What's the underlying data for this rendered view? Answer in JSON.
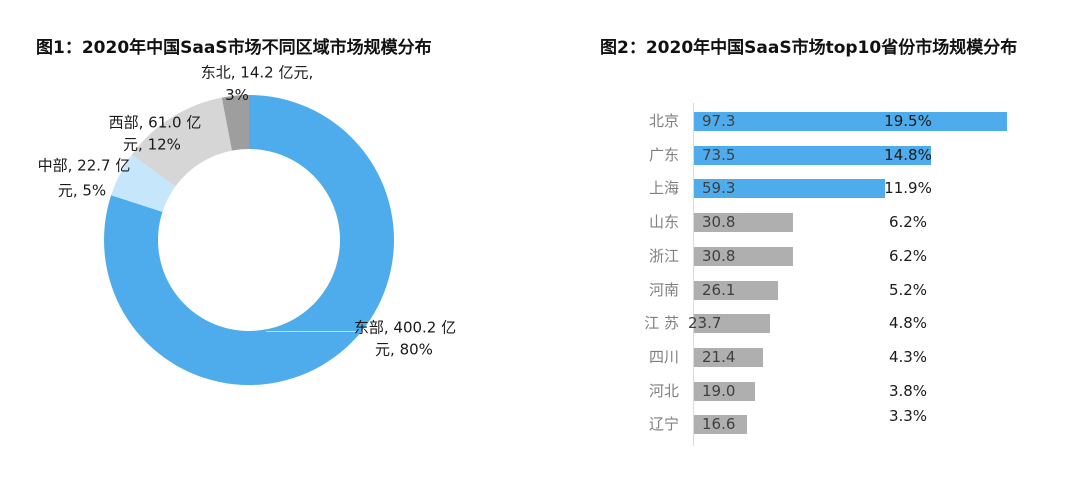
{
  "colors": {
    "background": "#FFFFFF",
    "pie_blue": "#4FACEC",
    "pie_light_blue": "#C5E6FB",
    "pie_light_gray": "#D6D6D6",
    "pie_dark_gray": "#9E9E9E",
    "bar_blue": "#4FACEC",
    "bar_gray": "#AFAFAF",
    "axis_line": "#D9D9D9",
    "category_label_gray": "#808080",
    "value_label_gray": "#404040",
    "percent_label_black": "#1A1A1A",
    "title_black": "#111111"
  },
  "chart_data": [
    {
      "type": "pie",
      "subtype": "donut",
      "title": "图1：2020年中国SaaS市场不同区域市场规模分布",
      "unit": "亿元",
      "categories": [
        "东部",
        "中部",
        "西部",
        "东北"
      ],
      "values": [
        400.2,
        22.7,
        61.0,
        14.2
      ],
      "percents": [
        80,
        5,
        12,
        3
      ],
      "colors": [
        "#4FACEC",
        "#C5E6FB",
        "#D6D6D6",
        "#9E9E9E"
      ],
      "start_angle_deg": 0,
      "direction": "clockwise",
      "legend": "none",
      "data_labels": [
        [
          "东部, 400.2 亿",
          "元, 80%"
        ],
        [
          "中部, 22.7 亿",
          "元, 5%"
        ],
        [
          "西部, 61.0 亿",
          "元, 12%"
        ],
        [
          "东北, 14.2 亿元,",
          "3%"
        ]
      ]
    },
    {
      "type": "bar",
      "orientation": "horizontal",
      "title": "图2：2020年中国SaaS市场top10省份市场规模分布",
      "categories": [
        "北京",
        "广东",
        "上海",
        "山东",
        "浙江",
        "河南",
        "江 苏",
        "四川",
        "河北",
        "辽宁"
      ],
      "values": [
        97.3,
        73.5,
        59.3,
        30.8,
        30.8,
        26.1,
        23.7,
        21.4,
        19.0,
        16.6
      ],
      "value_labels": [
        "97.3",
        "73.5",
        "59.3",
        "30.8",
        "30.8",
        "26.1",
        "23.7",
        "21.4",
        "19.0",
        "16.6"
      ],
      "percent_labels": [
        "19.5%",
        "14.8%",
        "11.9%",
        "6.2%",
        "6.2%",
        "5.2%",
        "4.8%",
        "4.3%",
        "3.8%",
        "3.3%"
      ],
      "highlighted": [
        true,
        true,
        true,
        false,
        false,
        false,
        false,
        false,
        false,
        false
      ],
      "value_label_outside": [
        false,
        false,
        false,
        false,
        false,
        false,
        true,
        false,
        false,
        false
      ],
      "xlim": [
        0,
        100
      ],
      "gridlines": false
    }
  ]
}
